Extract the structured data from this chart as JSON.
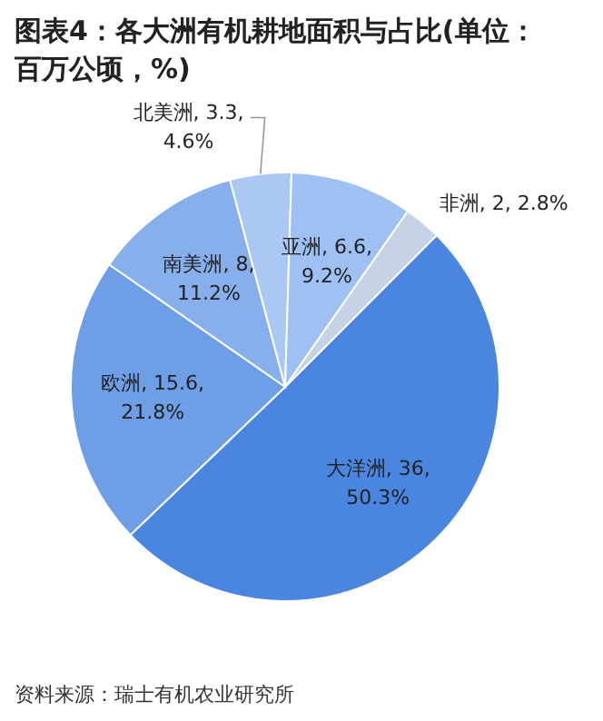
{
  "chart_data": {
    "type": "pie",
    "title": "图表4：各大洲有机耕地面积与占比(单位：百万公顷，%)",
    "categories": [
      "大洋洲",
      "欧洲",
      "南美洲",
      "北美洲",
      "亚洲",
      "非洲"
    ],
    "values": [
      36,
      15.6,
      8,
      3.3,
      6.6,
      2
    ],
    "colors": [
      "#4a86e0",
      "#6d9ee6",
      "#86afeb",
      "#aac8f3",
      "#9fc0f2",
      "#c6d3e6"
    ],
    "value_labels": [
      "36, 50.3%",
      "15.6, 21.8%",
      "8, 11.2%",
      "3.3, 4.6%",
      "6.6, 9.2%",
      "2, 2.8%"
    ],
    "annotations": [
      "资料来源：瑞士有机农业研究所"
    ],
    "legend": false
  }
}
